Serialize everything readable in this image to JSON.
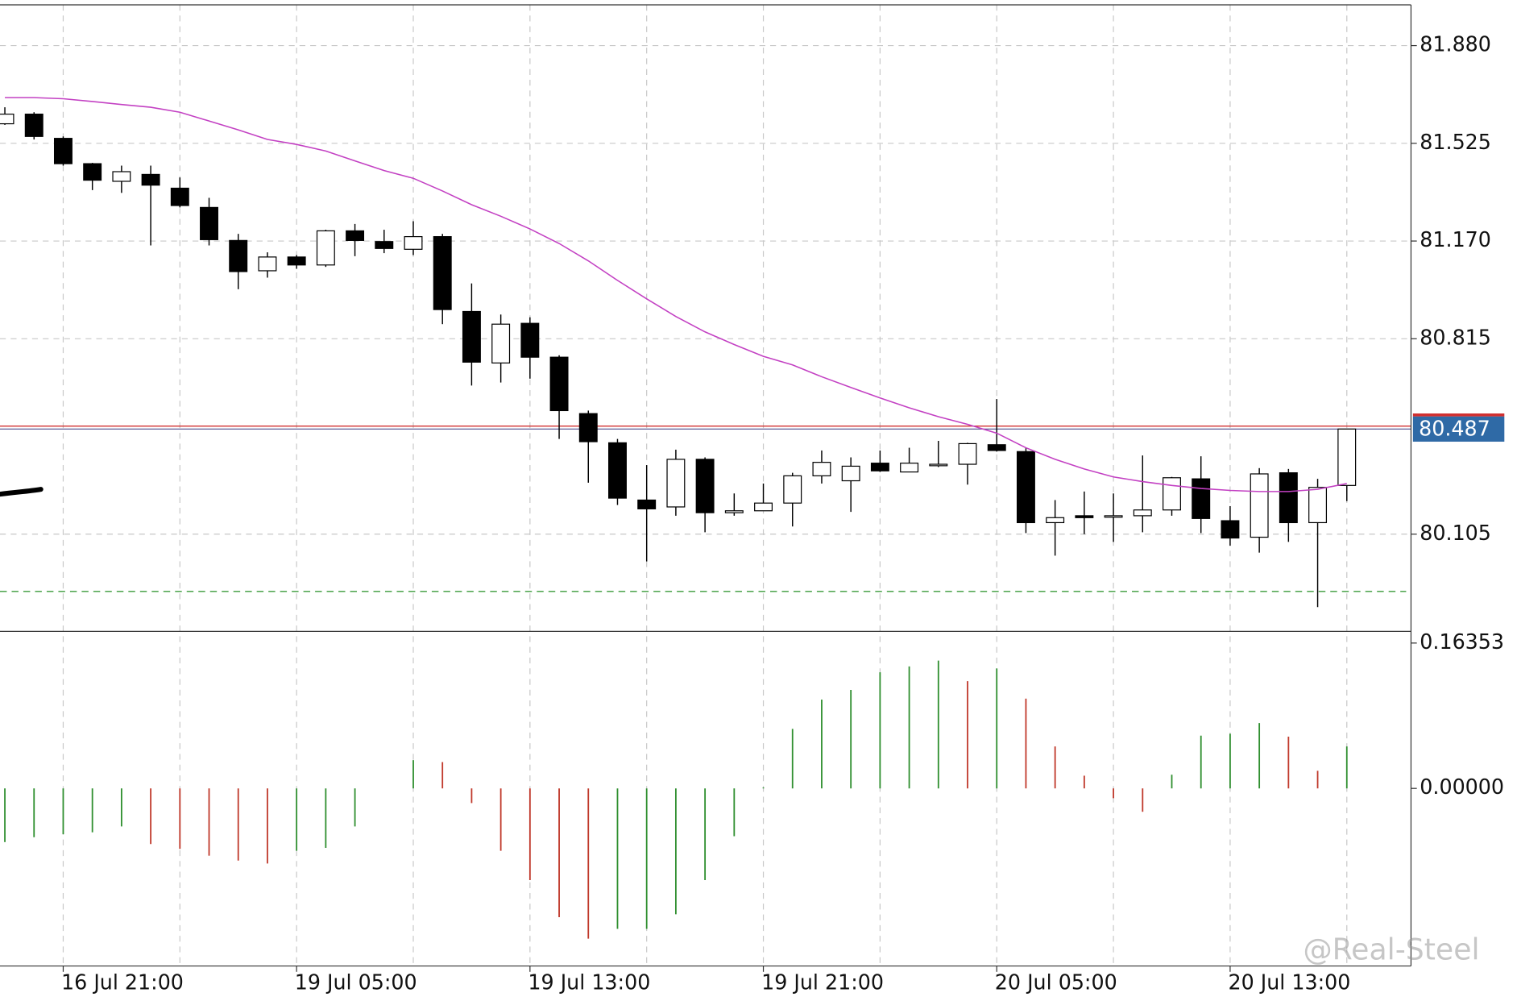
{
  "chart_data": [
    {
      "type": "candlestick",
      "categories": [
        null,
        null,
        "16 Jul 21:00",
        null,
        null,
        null,
        null,
        null,
        null,
        null,
        "19 Jul 05:00",
        null,
        null,
        null,
        null,
        null,
        null,
        null,
        "19 Jul 13:00",
        null,
        null,
        null,
        null,
        null,
        null,
        null,
        "19 Jul 21:00",
        null,
        null,
        null,
        null,
        null,
        null,
        null,
        "20 Jul 05:00",
        null,
        null,
        null,
        null,
        null,
        null,
        null,
        "20 Jul 13:00",
        null,
        null,
        null,
        null
      ],
      "open": [
        81.596,
        81.631,
        81.543,
        81.451,
        81.387,
        81.412,
        81.362,
        81.292,
        81.172,
        81.062,
        81.112,
        81.083,
        81.207,
        81.168,
        81.14,
        81.186,
        80.914,
        80.727,
        80.871,
        80.748,
        80.543,
        80.437,
        80.229,
        80.204,
        80.377,
        80.183,
        80.19,
        80.218,
        80.317,
        80.299,
        80.363,
        80.331,
        80.356,
        80.359,
        80.43,
        80.405,
        80.147,
        80.172,
        80.169,
        80.172,
        80.193,
        80.306,
        80.154,
        80.094,
        80.328,
        80.147,
        80.282
      ],
      "high": [
        81.656,
        81.638,
        81.55,
        81.454,
        81.444,
        81.444,
        81.401,
        81.327,
        81.196,
        81.129,
        81.119,
        81.211,
        81.232,
        81.211,
        81.242,
        81.196,
        81.016,
        80.903,
        80.893,
        80.755,
        80.554,
        80.451,
        80.356,
        80.412,
        80.384,
        80.253,
        80.289,
        80.328,
        80.409,
        80.384,
        80.409,
        80.419,
        80.444,
        80.437,
        80.596,
        80.419,
        80.229,
        80.26,
        80.253,
        80.391,
        80.313,
        80.388,
        80.207,
        80.345,
        80.342,
        80.306,
        80.487
      ],
      "low": [
        81.592,
        81.539,
        81.444,
        81.355,
        81.345,
        81.154,
        81.292,
        81.154,
        80.995,
        81.037,
        81.069,
        81.076,
        81.115,
        81.126,
        81.119,
        80.868,
        80.645,
        80.656,
        80.67,
        80.451,
        80.292,
        80.211,
        80.006,
        80.172,
        80.112,
        80.172,
        80.19,
        80.133,
        80.289,
        80.186,
        80.331,
        80.331,
        80.349,
        80.285,
        80.405,
        80.109,
        80.027,
        80.105,
        80.077,
        80.112,
        80.172,
        80.109,
        80.063,
        80.038,
        80.077,
        79.84,
        80.225
      ],
      "close": [
        81.631,
        81.55,
        81.451,
        81.391,
        81.422,
        81.373,
        81.299,
        81.175,
        81.059,
        81.112,
        81.083,
        81.207,
        81.172,
        81.143,
        81.186,
        80.921,
        80.73,
        80.868,
        80.748,
        80.554,
        80.441,
        80.236,
        80.197,
        80.377,
        80.183,
        80.19,
        80.218,
        80.317,
        80.366,
        80.352,
        80.335,
        80.363,
        80.359,
        80.434,
        80.409,
        80.147,
        80.165,
        80.165,
        80.172,
        80.193,
        80.31,
        80.162,
        80.091,
        80.324,
        80.147,
        80.275,
        80.487
      ],
      "up_color": "#ffffff",
      "down_color": "#000000",
      "ma": {
        "color": "#c341c3",
        "values": [
          81.691,
          81.691,
          81.687,
          81.677,
          81.666,
          81.656,
          81.638,
          81.606,
          81.574,
          81.539,
          81.521,
          81.497,
          81.461,
          81.426,
          81.398,
          81.352,
          81.302,
          81.26,
          81.214,
          81.161,
          81.098,
          81.027,
          80.96,
          80.896,
          80.84,
          80.794,
          80.751,
          80.72,
          80.677,
          80.638,
          80.6,
          80.564,
          80.532,
          80.504,
          80.472,
          80.419,
          80.377,
          80.342,
          80.313,
          80.296,
          80.282,
          80.271,
          80.264,
          80.26,
          80.26,
          80.268,
          80.289
        ]
      },
      "current_price": 80.487,
      "current_price_color": "#2f6aa6",
      "hline": {
        "value": 79.897,
        "color": "#3a9a3a"
      },
      "ylim": [
        79.752,
        82.028
      ],
      "yticks": [
        {
          "value": 81.88,
          "label": "81.880"
        },
        81.525,
        {
          "value": 81.17,
          "label": "81.170"
        },
        80.815,
        80.105
      ],
      "grid": true
    },
    {
      "type": "histogram-oscillator",
      "values": [
        -0.0604,
        -0.0549,
        -0.0516,
        -0.0494,
        -0.0428,
        -0.0626,
        -0.068,
        -0.0757,
        -0.0812,
        -0.0845,
        -0.0702,
        -0.0669,
        -0.0428,
        0,
        0.0318,
        0.0296,
        -0.0165,
        -0.0702,
        -0.1032,
        -0.1449,
        -0.169,
        -0.158,
        -0.158,
        -0.1416,
        -0.1032,
        -0.0538,
        0.0011,
        0.0669,
        0.0999,
        0.1108,
        0.1306,
        0.1372,
        0.1438,
        0.1207,
        0.135,
        0.101,
        0.0472,
        0.0143,
        -0.011,
        -0.0263,
        0.0154,
        0.0593,
        0.0615,
        0.0735,
        0.0582,
        0.0198,
        0.0472
      ],
      "up_color": "#2f8f2f",
      "down_color": "#c0392b",
      "ylim": [
        -0.1998,
        0.1767
      ],
      "yticks": [
        0.16353,
        {
          "value": 0,
          "label": "0.00000"
        }
      ]
    }
  ],
  "watermark": "@Real-Steel"
}
